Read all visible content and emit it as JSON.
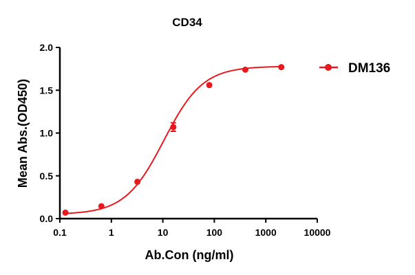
{
  "chart_data": {
    "type": "line",
    "title": "CD34",
    "xlabel": "Ab.Con (ng/ml)",
    "ylabel": "Mean Abs.(OD450)",
    "xscale": "log",
    "xlim": [
      0.1,
      10000
    ],
    "ylim": [
      0.0,
      2.0
    ],
    "xticks": [
      "0.1",
      "1",
      "10",
      "100",
      "1000",
      "10000"
    ],
    "yticks": [
      "0.0",
      "0.5",
      "1.0",
      "1.5",
      "2.0"
    ],
    "grid": false,
    "legend_position": "right-top",
    "series": [
      {
        "name": "DM136",
        "color": "#e8191e",
        "x": [
          0.128,
          0.64,
          3.2,
          16,
          80,
          400,
          2000
        ],
        "y": [
          0.07,
          0.145,
          0.43,
          1.07,
          1.56,
          1.74,
          1.77
        ],
        "error": [
          0.0,
          0.0,
          0.0,
          0.05,
          0.0,
          0.0,
          0.0
        ],
        "fit": "4PL sigmoid"
      }
    ]
  }
}
